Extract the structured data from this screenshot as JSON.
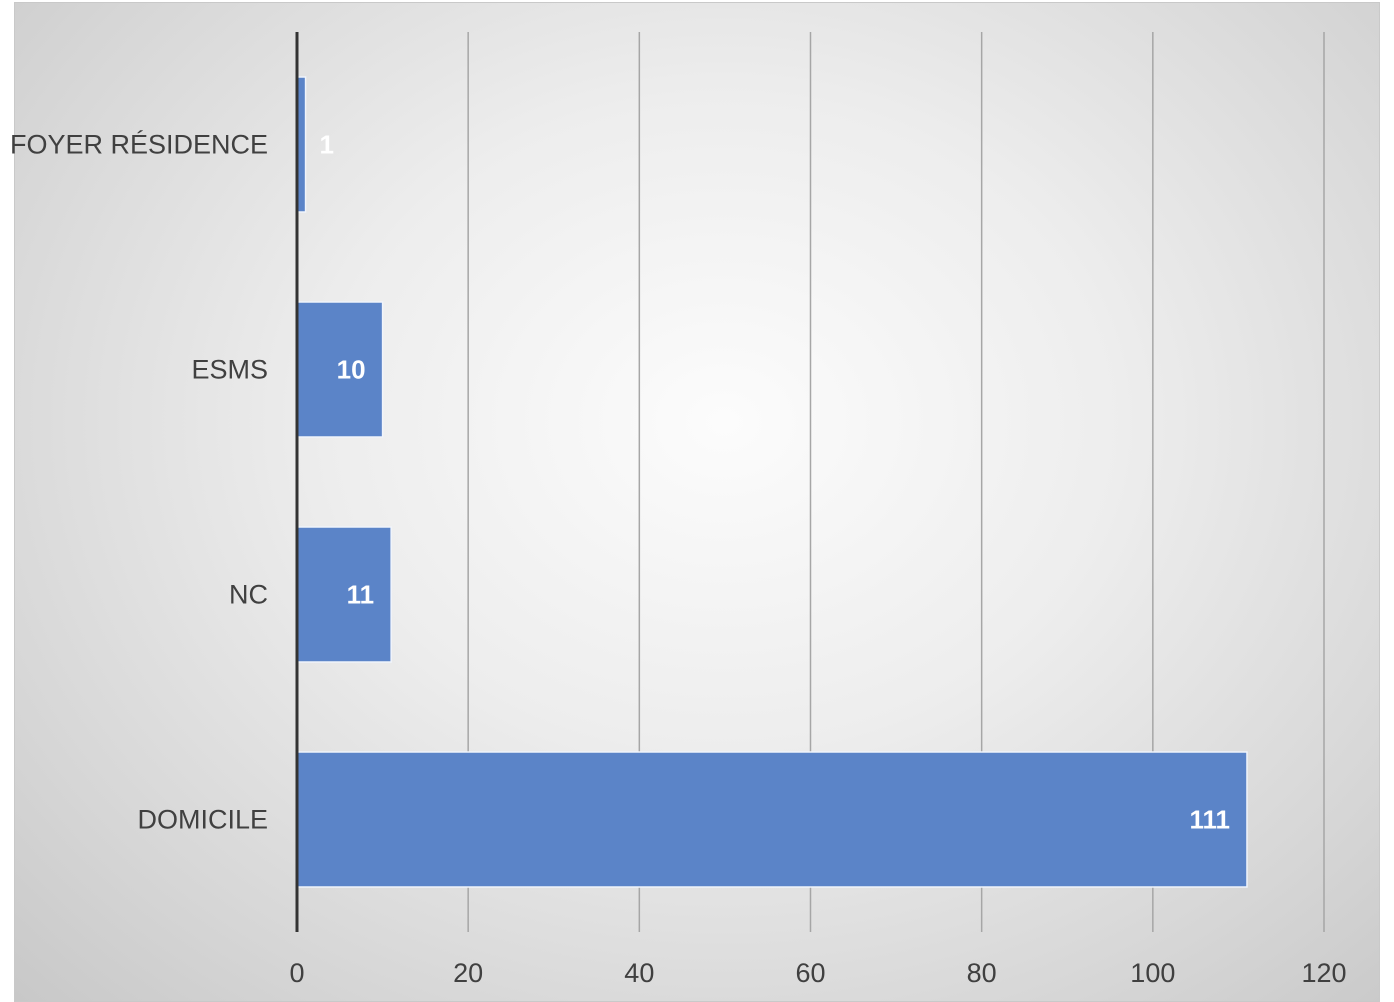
{
  "chart_data": {
    "type": "bar",
    "orientation": "horizontal",
    "categories": [
      "FOYER RÉSIDENCE",
      "ESMS",
      "NC",
      "DOMICILE"
    ],
    "values": [
      1,
      10,
      11,
      111
    ],
    "data_labels": [
      "1",
      "10",
      "11",
      "111"
    ],
    "xlim": [
      0,
      120
    ],
    "xticks": [
      0,
      20,
      40,
      60,
      80,
      100,
      120
    ],
    "xtick_labels": [
      "0",
      "20",
      "40",
      "60",
      "80",
      "100",
      "120"
    ],
    "grid": "vertical",
    "legend": "none",
    "colors": {
      "bar": "#5b84c8",
      "bar_edge": "#f0f4fb",
      "grid": "#a6a6a6",
      "axis": "#333333",
      "text": "#404040",
      "data_label": "#ffffff"
    }
  }
}
